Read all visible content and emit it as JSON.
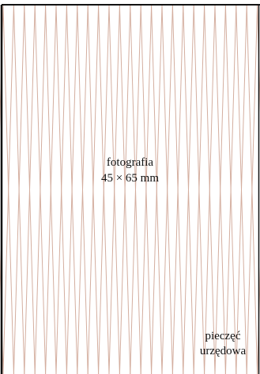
{
  "photo_area": {
    "label_line1": "fotografia",
    "label_line2": "45 × 65 mm"
  },
  "stamp_area": {
    "label_line1": "pieczęć",
    "label_line2": "urzędowa"
  },
  "colors": {
    "hatch": "#d4ae9f",
    "border": "#111111",
    "text": "#111111",
    "background": "#ffffff"
  }
}
